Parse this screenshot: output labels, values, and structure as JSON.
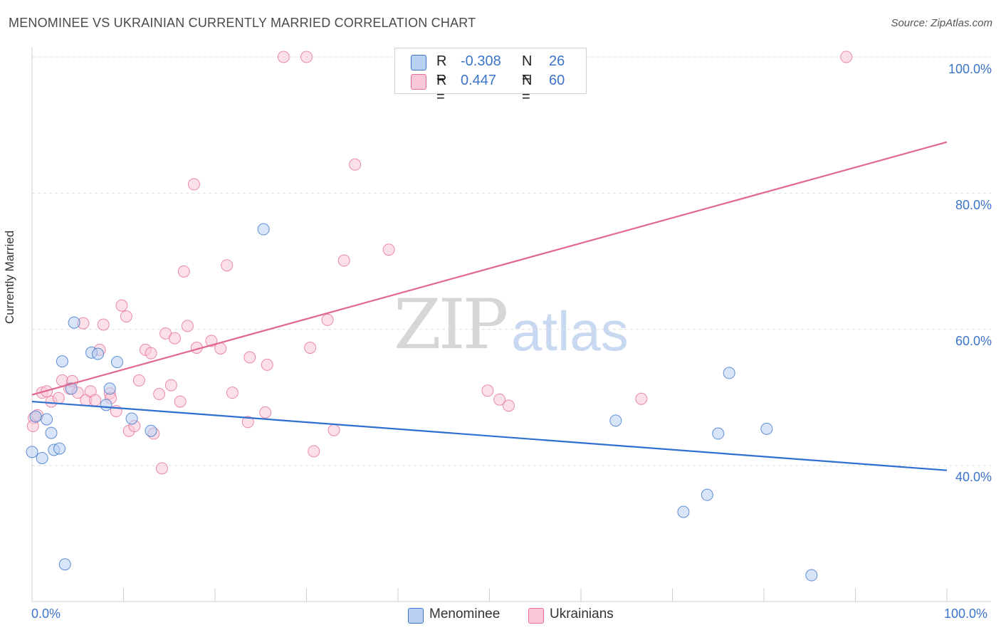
{
  "title": "MENOMINEE VS UKRAINIAN CURRENTLY MARRIED CORRELATION CHART",
  "source": "Source: ZipAtlas.com",
  "watermark": {
    "zip": "ZIP",
    "atlas": "atlas"
  },
  "colors": {
    "blue": "#3b74c9",
    "blue_fill": "#b8d0f3",
    "blue_line": "#2e6fd0",
    "pink": "#e36f95",
    "pink_fill": "#f9c7d6",
    "pink_line": "#e06890",
    "grid": "#dddddd"
  },
  "legend": {
    "rows": [
      {
        "r_label": "R =",
        "r_value": "-0.308",
        "n_label": "N =",
        "n_value": "26"
      },
      {
        "r_label": "R =",
        "r_value": "0.447",
        "n_label": "N =",
        "n_value": "60"
      }
    ]
  },
  "bottom_legend": [
    "Menominee",
    "Ukrainians"
  ],
  "chart_data": {
    "type": "scatter",
    "title": "MENOMINEE VS UKRAINIAN CURRENTLY MARRIED CORRELATION CHART",
    "xlabel": "",
    "ylabel": "Currently Married",
    "xlim": [
      0,
      100
    ],
    "ylim": [
      20,
      102
    ],
    "x_tick_labels": [
      "0.0%",
      "100.0%"
    ],
    "y_ticks": [
      40,
      60,
      80,
      100
    ],
    "y_tick_labels": [
      "40.0%",
      "60.0%",
      "80.0%",
      "100.0%"
    ],
    "grid": true,
    "series": [
      {
        "name": "Menominee",
        "color": "#3b74c9",
        "R": -0.308,
        "N": 26,
        "trend": {
          "x": [
            0,
            100
          ],
          "y": [
            49.4,
            39.3
          ]
        },
        "points": [
          [
            0.0,
            42.0
          ],
          [
            0.4,
            47.2
          ],
          [
            1.1,
            41.1
          ],
          [
            1.6,
            46.8
          ],
          [
            2.1,
            44.8
          ],
          [
            2.4,
            42.3
          ],
          [
            3.0,
            42.5
          ],
          [
            3.3,
            55.3
          ],
          [
            3.6,
            25.5
          ],
          [
            4.6,
            61.0
          ],
          [
            4.3,
            51.3
          ],
          [
            6.5,
            56.6
          ],
          [
            7.2,
            56.4
          ],
          [
            8.1,
            48.9
          ],
          [
            8.5,
            51.3
          ],
          [
            9.3,
            55.2
          ],
          [
            10.9,
            46.9
          ],
          [
            13.0,
            45.1
          ],
          [
            25.3,
            74.7
          ],
          [
            63.8,
            46.6
          ],
          [
            71.2,
            33.2
          ],
          [
            73.8,
            35.7
          ],
          [
            75.0,
            44.7
          ],
          [
            76.2,
            53.6
          ],
          [
            80.3,
            45.4
          ],
          [
            85.2,
            23.9
          ]
        ]
      },
      {
        "name": "Ukrainians",
        "color": "#e36f95",
        "R": 0.447,
        "N": 60,
        "trend": {
          "x": [
            0,
            100
          ],
          "y": [
            50.4,
            87.5
          ]
        },
        "points": [
          [
            0.2,
            47.0
          ],
          [
            0.6,
            47.4
          ],
          [
            1.1,
            50.7
          ],
          [
            1.6,
            50.9
          ],
          [
            2.1,
            49.4
          ],
          [
            2.9,
            49.9
          ],
          [
            3.3,
            52.5
          ],
          [
            4.1,
            51.3
          ],
          [
            4.4,
            52.4
          ],
          [
            5.0,
            50.7
          ],
          [
            5.6,
            60.9
          ],
          [
            5.9,
            49.6
          ],
          [
            6.4,
            50.9
          ],
          [
            6.9,
            49.6
          ],
          [
            7.4,
            57.0
          ],
          [
            7.8,
            60.7
          ],
          [
            8.5,
            50.6
          ],
          [
            8.6,
            49.9
          ],
          [
            9.2,
            48.0
          ],
          [
            9.8,
            63.5
          ],
          [
            10.3,
            61.9
          ],
          [
            10.6,
            45.1
          ],
          [
            11.2,
            45.8
          ],
          [
            11.7,
            52.5
          ],
          [
            12.4,
            57.0
          ],
          [
            13.0,
            56.5
          ],
          [
            13.3,
            44.7
          ],
          [
            13.9,
            50.5
          ],
          [
            14.2,
            39.6
          ],
          [
            14.6,
            59.4
          ],
          [
            15.2,
            51.8
          ],
          [
            15.6,
            58.7
          ],
          [
            16.2,
            49.4
          ],
          [
            16.6,
            68.5
          ],
          [
            17.0,
            60.5
          ],
          [
            17.7,
            81.3
          ],
          [
            18.0,
            57.3
          ],
          [
            19.6,
            58.3
          ],
          [
            20.6,
            57.2
          ],
          [
            21.3,
            69.4
          ],
          [
            21.9,
            50.7
          ],
          [
            23.6,
            46.4
          ],
          [
            23.8,
            55.9
          ],
          [
            25.5,
            47.8
          ],
          [
            25.7,
            54.8
          ],
          [
            27.5,
            100.0
          ],
          [
            30.0,
            100.0
          ],
          [
            30.4,
            57.3
          ],
          [
            30.8,
            42.1
          ],
          [
            32.3,
            61.4
          ],
          [
            33.0,
            45.2
          ],
          [
            34.1,
            70.1
          ],
          [
            35.3,
            84.2
          ],
          [
            39.0,
            71.7
          ],
          [
            49.8,
            51.0
          ],
          [
            51.1,
            49.7
          ],
          [
            52.1,
            48.8
          ],
          [
            66.6,
            49.8
          ],
          [
            89.0,
            100.0
          ],
          [
            0.1,
            45.8
          ]
        ]
      }
    ]
  }
}
